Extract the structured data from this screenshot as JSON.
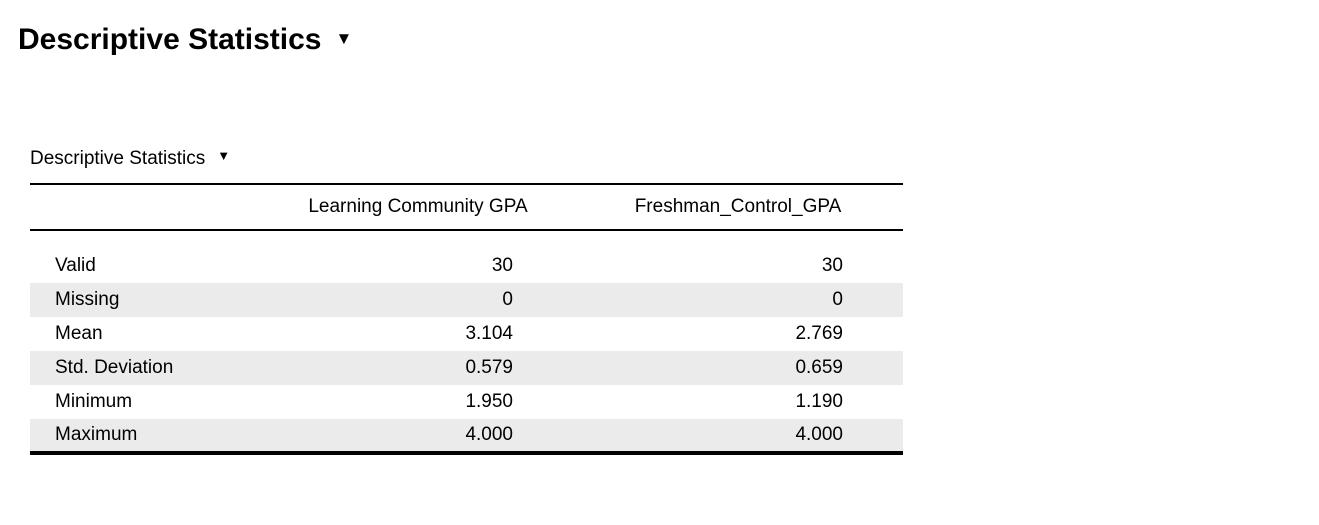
{
  "page": {
    "heading": "Descriptive Statistics"
  },
  "icons": {
    "dropdown_caret": "▼"
  },
  "colors": {
    "background": "#ffffff",
    "text": "#000000",
    "row_stripe": "#ebebeb",
    "table_border": "#000000"
  },
  "results_table": {
    "title": "Descriptive Statistics",
    "columns": [
      "Learning Community GPA",
      "Freshman_Control_GPA"
    ],
    "rows": [
      {
        "label": "Valid",
        "values": [
          "30",
          "30"
        ]
      },
      {
        "label": "Missing",
        "values": [
          "0",
          "0"
        ]
      },
      {
        "label": "Mean",
        "values": [
          "3.104",
          "2.769"
        ]
      },
      {
        "label": "Std. Deviation",
        "values": [
          "0.579",
          "0.659"
        ]
      },
      {
        "label": "Minimum",
        "values": [
          "1.950",
          "1.190"
        ]
      },
      {
        "label": "Maximum",
        "values": [
          "4.000",
          "4.000"
        ]
      }
    ]
  }
}
